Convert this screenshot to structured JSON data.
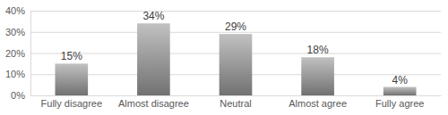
{
  "chart_data": {
    "type": "bar",
    "categories": [
      "Fully disagree",
      "Almost disagree",
      "Neutral",
      "Almost agree",
      "Fully agree"
    ],
    "values": [
      15,
      34,
      29,
      18,
      4
    ],
    "value_labels": [
      "15%",
      "34%",
      "29%",
      "18%",
      "4%"
    ],
    "data_labels": true,
    "color": "#8c8c8c",
    "ylim": [
      0,
      40
    ],
    "yticks": [
      {
        "value": 0,
        "label": "0%"
      },
      {
        "value": 10,
        "label": "10%"
      },
      {
        "value": 20,
        "label": "20%"
      },
      {
        "value": 30,
        "label": "30%"
      },
      {
        "value": 40,
        "label": "40%"
      }
    ],
    "grid": true
  }
}
